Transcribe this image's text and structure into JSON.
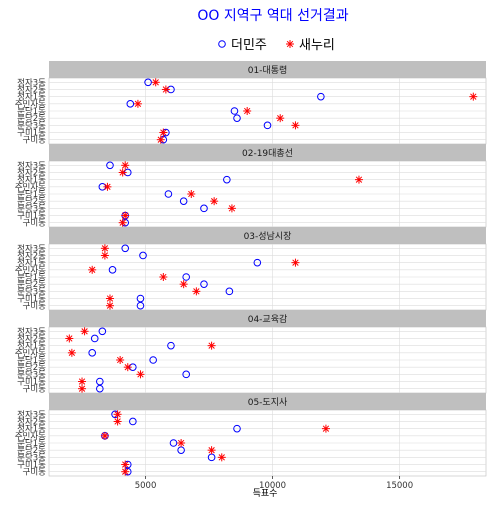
{
  "chart_data": {
    "type": "scatter",
    "title": "OO 지역구 역대 선거결과",
    "xlabel": "득표수",
    "ylabel": "",
    "xlim": [
      1200,
      18400
    ],
    "x_ticks": [
      5000,
      10000,
      15000
    ],
    "categories": [
      "정자3동",
      "정자2동",
      "정자1동",
      "주민자동",
      "분당1동",
      "분당2동",
      "분당3동",
      "구미1동",
      "구미동"
    ],
    "legend": {
      "position": "top",
      "entries": [
        {
          "name": "더민주",
          "marker": "circle",
          "color": "#0000ff"
        },
        {
          "name": "새누리",
          "marker": "asterisk",
          "color": "#ff0000"
        }
      ]
    },
    "grid": true,
    "facets": [
      {
        "label": "01-대통령",
        "series": [
          {
            "name": "더민주",
            "values": [
              5100,
              6000,
              11900,
              4400,
              8500,
              8600,
              9800,
              5800,
              5700
            ]
          },
          {
            "name": "새누리",
            "values": [
              5400,
              5800,
              17900,
              4700,
              9000,
              10300,
              10900,
              5700,
              5600
            ]
          }
        ]
      },
      {
        "label": "02-19대총선",
        "series": [
          {
            "name": "더민주",
            "values": [
              3600,
              4300,
              8200,
              3300,
              5900,
              6500,
              7300,
              4200,
              4200
            ]
          },
          {
            "name": "새누리",
            "values": [
              4200,
              4100,
              13400,
              3500,
              6800,
              7700,
              8400,
              4200,
              4100
            ]
          }
        ]
      },
      {
        "label": "03-성남시장",
        "series": [
          {
            "name": "더민주",
            "values": [
              4200,
              4900,
              9400,
              3700,
              6600,
              7300,
              8300,
              4800,
              4800
            ]
          },
          {
            "name": "새누리",
            "values": [
              3400,
              3400,
              10900,
              2900,
              5700,
              6500,
              7000,
              3600,
              3600
            ]
          }
        ]
      },
      {
        "label": "04-교육감",
        "series": [
          {
            "name": "더민주",
            "values": [
              3300,
              3000,
              6000,
              2900,
              5300,
              4500,
              6600,
              3200,
              3200
            ]
          },
          {
            "name": "새누리",
            "values": [
              2600,
              2000,
              7600,
              2100,
              4000,
              4300,
              4800,
              2500,
              2500
            ]
          }
        ]
      },
      {
        "label": "05-도지사",
        "series": [
          {
            "name": "더민주",
            "values": [
              3800,
              4500,
              8600,
              3400,
              6100,
              6400,
              7600,
              4300,
              4300
            ]
          },
          {
            "name": "새누리",
            "values": [
              3900,
              3900,
              12100,
              3400,
              6400,
              7600,
              8000,
              4200,
              4200
            ]
          }
        ]
      }
    ]
  }
}
